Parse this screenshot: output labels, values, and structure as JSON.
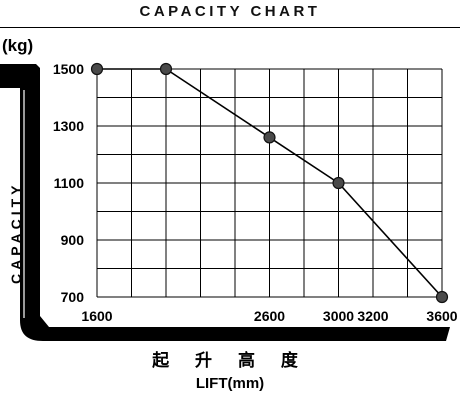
{
  "header": {
    "title": "CAPACITY CHART"
  },
  "chart_data": {
    "type": "line",
    "unit_label": "(kg)",
    "ylabel": "CAPACITY",
    "xlabel_cn": "起 升 高 度",
    "xlabel": "LIFT(mm)",
    "x_ticks": [
      1600,
      2600,
      3000,
      3200,
      3600
    ],
    "y_ticks": [
      700,
      900,
      1100,
      1300,
      1500
    ],
    "xlim": [
      1600,
      3600
    ],
    "ylim": [
      700,
      1500
    ],
    "grid": true,
    "series": [
      {
        "x": [
          1600,
          2000,
          2600,
          3000,
          3600
        ],
        "y": [
          1500,
          1500,
          1260,
          1100,
          700
        ]
      }
    ],
    "colors": {
      "line": "#000000",
      "marker": "#4a4a4a",
      "grid": "#000000"
    }
  }
}
